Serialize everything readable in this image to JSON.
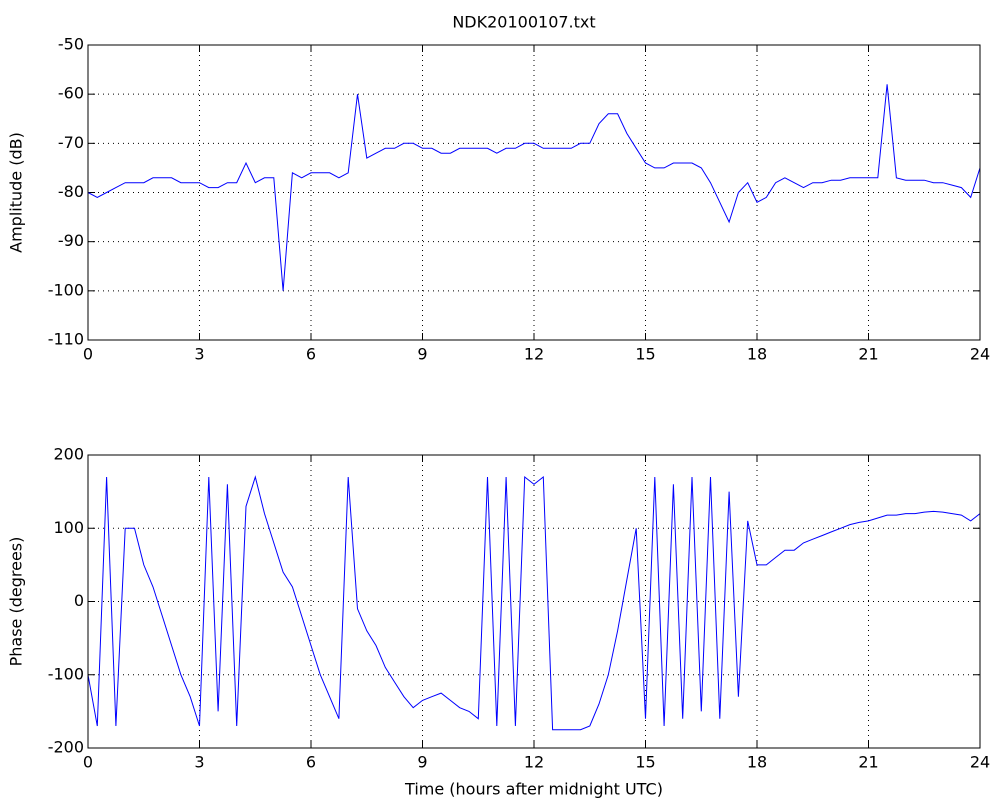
{
  "chart_data": [
    {
      "type": "line",
      "title": "NDK20100107.txt",
      "ylabel": "Amplitude (dB)",
      "color": "#0000ff",
      "grid": true,
      "xlim": [
        0,
        24
      ],
      "xticks": [
        0,
        3,
        6,
        9,
        12,
        15,
        18,
        21,
        24
      ],
      "ylim": [
        -110,
        -50
      ],
      "yticks": [
        -110,
        -100,
        -90,
        -80,
        -70,
        -60,
        -50
      ],
      "x": [
        0,
        0.25,
        0.5,
        0.75,
        1,
        1.25,
        1.5,
        1.75,
        2,
        2.25,
        2.5,
        2.75,
        3,
        3.25,
        3.5,
        3.75,
        4,
        4.25,
        4.5,
        4.75,
        5,
        5.25,
        5.5,
        5.75,
        6,
        6.25,
        6.5,
        6.75,
        7,
        7.25,
        7.5,
        7.75,
        8,
        8.25,
        8.5,
        8.75,
        9,
        9.25,
        9.5,
        9.75,
        10,
        10.25,
        10.5,
        10.75,
        11,
        11.25,
        11.5,
        11.75,
        12,
        12.25,
        12.5,
        12.75,
        13,
        13.25,
        13.5,
        13.75,
        14,
        14.25,
        14.5,
        14.75,
        15,
        15.25,
        15.5,
        15.75,
        16,
        16.25,
        16.5,
        16.75,
        17,
        17.25,
        17.5,
        17.75,
        18,
        18.25,
        18.5,
        18.75,
        19,
        19.25,
        19.5,
        19.75,
        20,
        20.25,
        20.5,
        20.75,
        21,
        21.25,
        21.5,
        21.75,
        22,
        22.25,
        22.5,
        22.75,
        23,
        23.25,
        23.5,
        23.75,
        24
      ],
      "values": [
        -80,
        -81,
        -80,
        -79,
        -78,
        -78,
        -78,
        -77,
        -77,
        -77,
        -78,
        -78,
        -78,
        -79,
        -79,
        -78,
        -78,
        -74,
        -78,
        -77,
        -77,
        -100,
        -76,
        -77,
        -76,
        -76,
        -76,
        -77,
        -76,
        -60,
        -73,
        -72,
        -71,
        -71,
        -70,
        -70,
        -71,
        -71,
        -72,
        -72,
        -71,
        -71,
        -71,
        -71,
        -72,
        -71,
        -71,
        -70,
        -70,
        -71,
        -71,
        -71,
        -71,
        -70,
        -70,
        -66,
        -64,
        -64,
        -68,
        -71,
        -74,
        -75,
        -75,
        -74,
        -74,
        -74,
        -75,
        -78,
        -82,
        -86,
        -80,
        -78,
        -82,
        -81,
        -78,
        -77,
        -78,
        -79,
        -78,
        -78,
        -77.5,
        -77.5,
        -77,
        -77,
        -77,
        -77,
        -58,
        -77,
        -77.5,
        -77.5,
        -77.5,
        -78,
        -78,
        -78.5,
        -79,
        -81,
        -75
      ]
    },
    {
      "type": "line",
      "xlabel": "Time (hours after midnight UTC)",
      "ylabel": "Phase (degrees)",
      "color": "#0000ff",
      "grid": true,
      "xlim": [
        0,
        24
      ],
      "xticks": [
        0,
        3,
        6,
        9,
        12,
        15,
        18,
        21,
        24
      ],
      "ylim": [
        -200,
        200
      ],
      "yticks": [
        -200,
        -100,
        0,
        100,
        200
      ],
      "x": [
        0,
        0.25,
        0.5,
        0.75,
        1,
        1.25,
        1.5,
        1.75,
        2,
        2.25,
        2.5,
        2.75,
        3,
        3.25,
        3.5,
        3.75,
        4,
        4.25,
        4.5,
        4.75,
        5,
        5.25,
        5.5,
        5.75,
        6,
        6.25,
        6.5,
        6.75,
        7,
        7.25,
        7.5,
        7.75,
        8,
        8.25,
        8.5,
        8.75,
        9,
        9.25,
        9.5,
        9.75,
        10,
        10.25,
        10.5,
        10.75,
        11,
        11.25,
        11.5,
        11.75,
        12,
        12.25,
        12.5,
        12.75,
        13,
        13.25,
        13.5,
        13.75,
        14,
        14.25,
        14.5,
        14.75,
        15,
        15.25,
        15.5,
        15.75,
        16,
        16.25,
        16.5,
        16.75,
        17,
        17.25,
        17.5,
        17.75,
        18,
        18.25,
        18.5,
        18.75,
        19,
        19.25,
        19.5,
        19.75,
        20,
        20.25,
        20.5,
        20.75,
        21,
        21.25,
        21.5,
        21.75,
        22,
        22.25,
        22.5,
        22.75,
        23,
        23.25,
        23.5,
        23.75,
        24
      ],
      "values": [
        -100,
        -170,
        170,
        -170,
        100,
        100,
        50,
        20,
        -20,
        -60,
        -100,
        -130,
        -170,
        170,
        -150,
        160,
        -170,
        130,
        170,
        120,
        80,
        40,
        20,
        -20,
        -60,
        -100,
        -130,
        -160,
        170,
        -10,
        -40,
        -60,
        -90,
        -110,
        -130,
        -145,
        -135,
        -130,
        -125,
        -135,
        -145,
        -150,
        -160,
        170,
        -170,
        170,
        -170,
        170,
        160,
        170,
        -175,
        -175,
        -175,
        -175,
        -170,
        -140,
        -100,
        -40,
        30,
        100,
        -160,
        170,
        -170,
        160,
        -160,
        170,
        -150,
        170,
        -160,
        150,
        -130,
        110,
        50,
        50,
        60,
        70,
        70,
        80,
        85,
        90,
        95,
        100,
        105,
        108,
        110,
        114,
        118,
        118,
        120,
        120,
        122,
        123,
        122,
        120,
        118,
        110,
        120
      ]
    }
  ]
}
